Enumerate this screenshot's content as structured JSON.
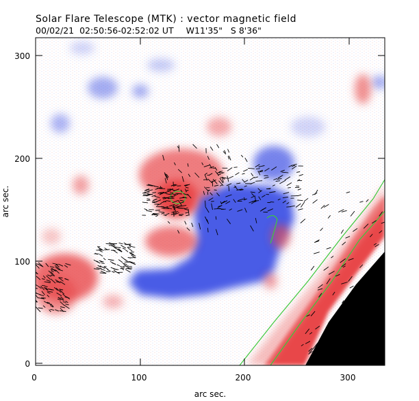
{
  "header": {
    "title": "Solar Flare Telescope (MTK) : vector magnetic field",
    "time": "00/02/21  02:50:56-02:52:02 UT",
    "coords": "W11'35\"   S 8'36\""
  },
  "axes": {
    "xlabel": "arc sec.",
    "ylabel": "arc sec.",
    "xticks": [
      "0",
      "100",
      "200",
      "300"
    ],
    "yticks": [
      "0",
      "100",
      "200",
      "300"
    ]
  },
  "colors": {
    "positive_polarity": "#e8474a",
    "negative_polarity": "#4a5ce6",
    "neutral_line": "#3cc93c",
    "frame": "#000000",
    "limb_outside": "#000000",
    "transverse_vectors": "#000000"
  }
}
